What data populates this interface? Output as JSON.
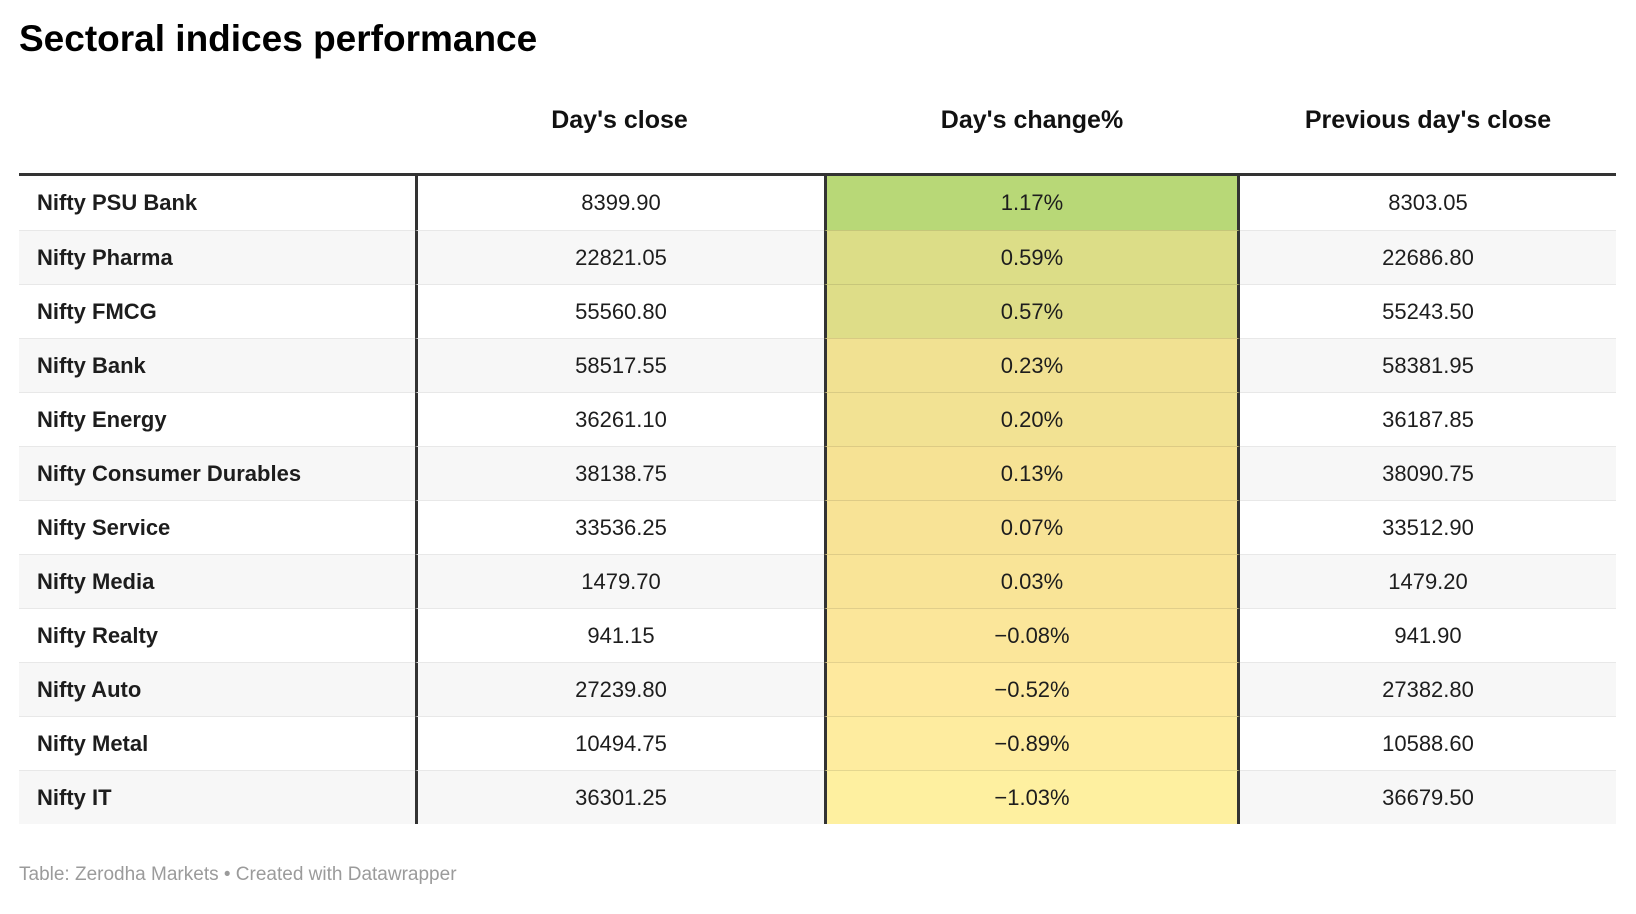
{
  "title": "Sectoral indices performance",
  "table": {
    "columns": [
      "",
      "Day's close",
      "Day's change%",
      "Previous day's close"
    ],
    "rows": [
      {
        "label": "Nifty PSU Bank",
        "close": "8399.90",
        "change": "1.17%",
        "prev": "8303.05",
        "change_color": "#b8d877"
      },
      {
        "label": "Nifty Pharma",
        "close": "22821.05",
        "change": "0.59%",
        "prev": "22686.80",
        "change_color": "#dcdd87"
      },
      {
        "label": "Nifty FMCG",
        "close": "55560.80",
        "change": "0.57%",
        "prev": "55243.50",
        "change_color": "#dedd88"
      },
      {
        "label": "Nifty Bank",
        "close": "58517.55",
        "change": "0.23%",
        "prev": "58381.95",
        "change_color": "#f1e192"
      },
      {
        "label": "Nifty Energy",
        "close": "36261.10",
        "change": "0.20%",
        "prev": "36187.85",
        "change_color": "#f2e293"
      },
      {
        "label": "Nifty Consumer Durables",
        "close": "38138.75",
        "change": "0.13%",
        "prev": "38090.75",
        "change_color": "#f6e294"
      },
      {
        "label": "Nifty Service",
        "close": "33536.25",
        "change": "0.07%",
        "prev": "33512.90",
        "change_color": "#f8e396"
      },
      {
        "label": "Nifty Media",
        "close": "1479.70",
        "change": "0.03%",
        "prev": "1479.20",
        "change_color": "#f9e497"
      },
      {
        "label": "Nifty Realty",
        "close": "941.15",
        "change": "−0.08%",
        "prev": "941.90",
        "change_color": "#fbe69a"
      },
      {
        "label": "Nifty Auto",
        "close": "27239.80",
        "change": "−0.52%",
        "prev": "27382.80",
        "change_color": "#fee99e"
      },
      {
        "label": "Nifty Metal",
        "close": "10494.75",
        "change": "−0.89%",
        "prev": "10588.60",
        "change_color": "#feec9f"
      },
      {
        "label": "Nifty IT",
        "close": "36301.25",
        "change": "−1.03%",
        "prev": "36679.50",
        "change_color": "#fef0a0"
      }
    ]
  },
  "footer": {
    "credit": "Table: Zerodha Markets • Created with Datawrapper"
  },
  "colors": {
    "table_border": "#333333",
    "row_stripe": "#f7f7f7",
    "row_divider": "#e8e8e8",
    "text": "#1d1d1d",
    "footer_text": "#9b9b9b",
    "change_scale_positive_max": "#b8d877",
    "change_scale_negative_min": "#fef0a0"
  },
  "chart_data": {
    "type": "table",
    "title": "Sectoral indices performance",
    "columns": [
      "Index",
      "Day's close",
      "Day's change%",
      "Previous day's close"
    ],
    "rows": [
      {
        "index": "Nifty PSU Bank",
        "days_close": 8399.9,
        "days_change_pct": 1.17,
        "previous_days_close": 8303.05
      },
      {
        "index": "Nifty Pharma",
        "days_close": 22821.05,
        "days_change_pct": 0.59,
        "previous_days_close": 22686.8
      },
      {
        "index": "Nifty FMCG",
        "days_close": 55560.8,
        "days_change_pct": 0.57,
        "previous_days_close": 55243.5
      },
      {
        "index": "Nifty Bank",
        "days_close": 58517.55,
        "days_change_pct": 0.23,
        "previous_days_close": 58381.95
      },
      {
        "index": "Nifty Energy",
        "days_close": 36261.1,
        "days_change_pct": 0.2,
        "previous_days_close": 36187.85
      },
      {
        "index": "Nifty Consumer Durables",
        "days_close": 38138.75,
        "days_change_pct": 0.13,
        "previous_days_close": 38090.75
      },
      {
        "index": "Nifty Service",
        "days_close": 33536.25,
        "days_change_pct": 0.07,
        "previous_days_close": 33512.9
      },
      {
        "index": "Nifty Media",
        "days_close": 1479.7,
        "days_change_pct": 0.03,
        "previous_days_close": 1479.2
      },
      {
        "index": "Nifty Realty",
        "days_close": 941.15,
        "days_change_pct": -0.08,
        "previous_days_close": 941.9
      },
      {
        "index": "Nifty Auto",
        "days_close": 27239.8,
        "days_change_pct": -0.52,
        "previous_days_close": 27382.8
      },
      {
        "index": "Nifty Metal",
        "days_close": 10494.75,
        "days_change_pct": -0.89,
        "previous_days_close": 10588.6
      },
      {
        "index": "Nifty IT",
        "days_close": 36301.25,
        "days_change_pct": -1.03,
        "previous_days_close": 36679.5
      }
    ],
    "notes": "Day's change% column uses a green-to-yellow diverging color fill by value; rows sorted descending by change%",
    "source": "Table: Zerodha Markets • Created with Datawrapper"
  }
}
